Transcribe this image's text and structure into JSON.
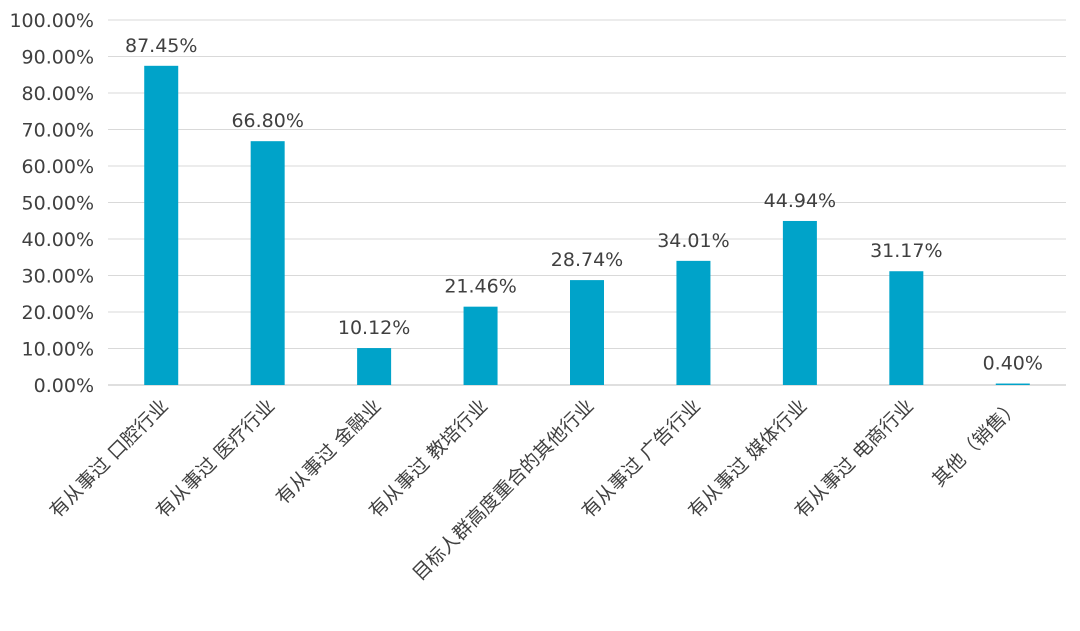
{
  "chart_data": {
    "type": "bar",
    "title": "",
    "xlabel": "",
    "ylabel": "",
    "categories": [
      "有从事过 口腔行业",
      "有从事过 医疗行业",
      "有从事过 金融业",
      "有从事过 教培行业",
      "目标人群高度重合的其他行业",
      "有从事过 广告行业",
      "有从事过 媒体行业",
      "有从事过 电商行业",
      "其他（销售）"
    ],
    "values": [
      87.45,
      66.8,
      10.12,
      21.46,
      28.74,
      34.01,
      44.94,
      31.17,
      0.4
    ],
    "data_labels": [
      "87.45%",
      "66.80%",
      "10.12%",
      "21.46%",
      "28.74%",
      "34.01%",
      "44.94%",
      "31.17%",
      "0.40%"
    ],
    "ylim": [
      0,
      100
    ],
    "yticks": [
      0,
      10,
      20,
      30,
      40,
      50,
      60,
      70,
      80,
      90,
      100
    ],
    "ytick_labels": [
      "0.00%",
      "10.00%",
      "20.00%",
      "30.00%",
      "40.00%",
      "50.00%",
      "60.00%",
      "70.00%",
      "80.00%",
      "90.00%",
      "100.00%"
    ],
    "grid": true,
    "legend": "none",
    "bar_color": "#00a3c9"
  }
}
